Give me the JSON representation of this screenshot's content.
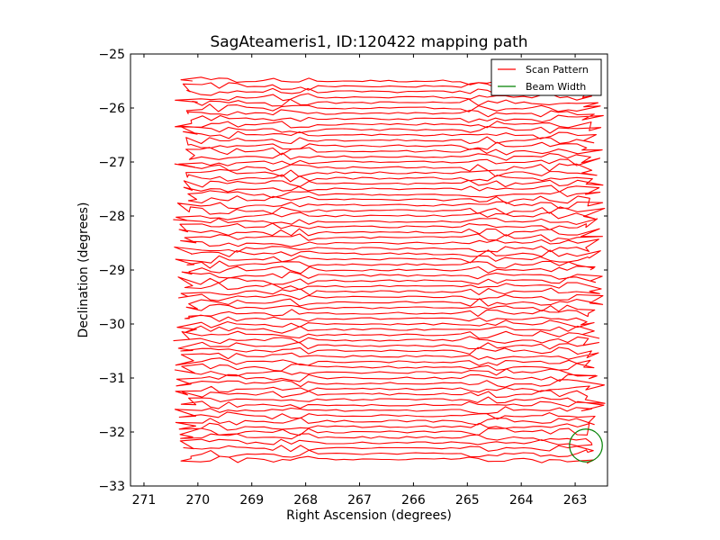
{
  "chart_data": {
    "type": "line",
    "title": "SagAteameris1, ID:120422 mapping path",
    "xlabel": "Right Ascension (degrees)",
    "ylabel": "Declination (degrees)",
    "xlim": [
      271.25,
      262.4
    ],
    "ylim": [
      -33,
      -25
    ],
    "x_inverted": true,
    "xticks": [
      271,
      270,
      269,
      268,
      267,
      266,
      265,
      264,
      263
    ],
    "yticks": [
      -25,
      -26,
      -27,
      -28,
      -29,
      -30,
      -31,
      -32,
      -33
    ],
    "xtick_labels": [
      "271",
      "270",
      "269",
      "268",
      "267",
      "266",
      "265",
      "264",
      "263"
    ],
    "ytick_labels": [
      "−25",
      "−26",
      "−27",
      "−28",
      "−29",
      "−30",
      "−31",
      "−32",
      "−33"
    ],
    "grid": false,
    "legend_position": "top-right",
    "series": [
      {
        "name": "Scan Pattern",
        "color": "#ff0000",
        "kind": "raster-scan",
        "ra_range": [
          270.1,
          262.8
        ],
        "dec_range": [
          -25.5,
          -32.5
        ],
        "dec_step": 0.1
      },
      {
        "name": "Beam Width",
        "color": "#008000",
        "kind": "circle",
        "center": [
          262.8,
          -32.25
        ],
        "radius_deg": 0.32
      }
    ]
  }
}
